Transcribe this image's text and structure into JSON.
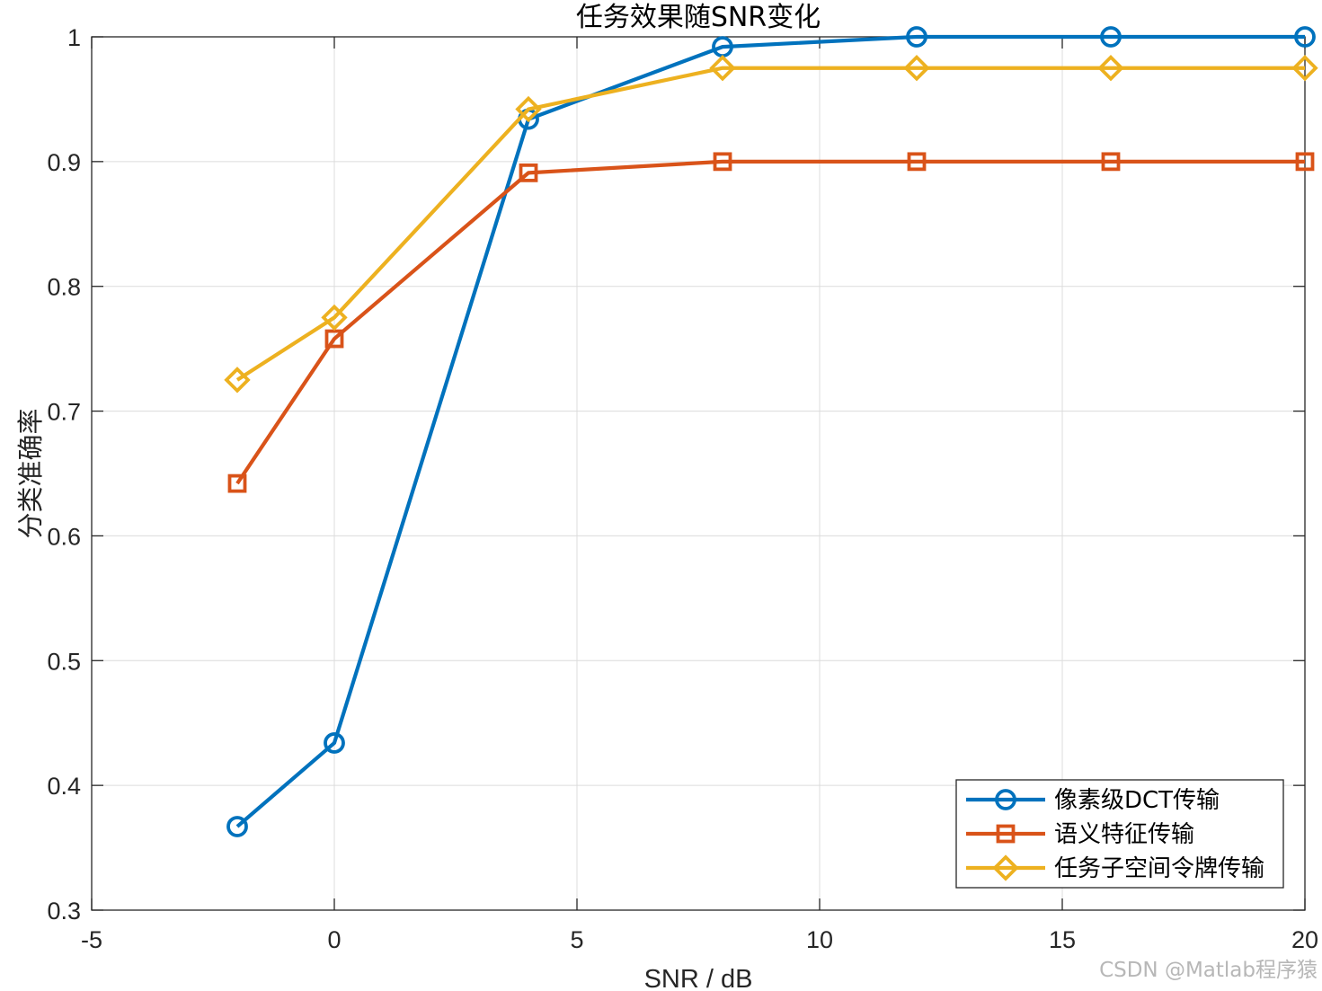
{
  "chart_data": {
    "type": "line",
    "title": "任务效果随SNR变化",
    "xlabel": "SNR / dB",
    "ylabel": "分类准确率",
    "xlim": [
      -5,
      20
    ],
    "ylim": [
      0.3,
      1
    ],
    "xticks": [
      -5,
      0,
      5,
      10,
      15,
      20
    ],
    "yticks": [
      0.3,
      0.4,
      0.5,
      0.6,
      0.7,
      0.8,
      0.9,
      1
    ],
    "xtick_labels": [
      "-5",
      "0",
      "5",
      "10",
      "15",
      "20"
    ],
    "ytick_labels": [
      "0.3",
      "0.4",
      "0.5",
      "0.6",
      "0.7",
      "0.8",
      "0.9",
      "1"
    ],
    "grid": true,
    "legend_position": "bottom-right",
    "x": [
      -2,
      0,
      4,
      8,
      12,
      16,
      20
    ],
    "series": [
      {
        "name": "像素级DCT传输",
        "marker": "circle",
        "color": "#0072BD",
        "values": [
          0.367,
          0.434,
          0.934,
          0.992,
          1.0,
          1.0,
          1.0
        ]
      },
      {
        "name": "语义特征传输",
        "marker": "square",
        "color": "#D95319",
        "values": [
          0.642,
          0.758,
          0.891,
          0.9,
          0.9,
          0.9,
          0.9
        ]
      },
      {
        "name": "任务子空间令牌传输",
        "marker": "diamond",
        "color": "#EDB120",
        "values": [
          0.725,
          0.775,
          0.942,
          0.975,
          0.975,
          0.975,
          0.975
        ]
      }
    ]
  },
  "watermark": "CSDN @Matlab程序猿"
}
